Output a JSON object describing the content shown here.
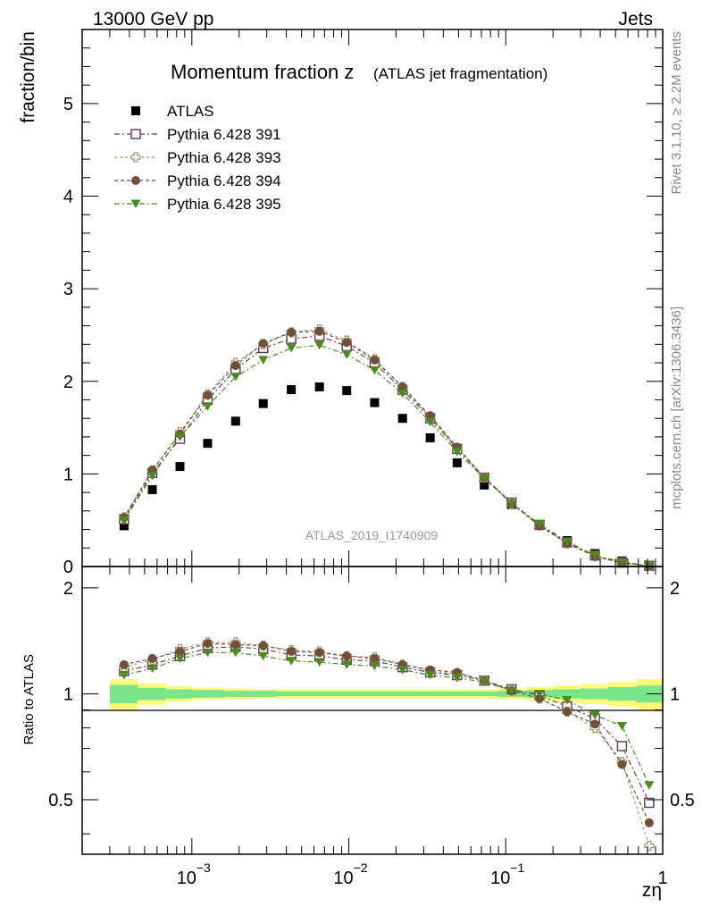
{
  "header": {
    "left": "13000 GeV pp",
    "right": "Jets"
  },
  "side_labels": {
    "rivet": "Rivet 3.1.10, ≥ 2.2M events",
    "mcplots": "mcplots.cern.ch [arXiv:1306.3436]"
  },
  "chart_data": {
    "type": "scatter",
    "title_main": "Momentum fraction z",
    "title_sub": "(ATLAS jet fragmentation)",
    "watermark": "ATLAS_2019_I1740909",
    "xlabel": "zη",
    "ylabel": "fraction/bin",
    "ratio_ylabel": "Ratio to ATLAS",
    "x_scale": "log",
    "xlim": [
      0.0002,
      1
    ],
    "ylim": [
      0,
      5.8
    ],
    "ratio_ylim": [
      0.35,
      2.3
    ],
    "x_ticks": [
      {
        "value": 0.001,
        "label": "10",
        "exp": "−3"
      },
      {
        "value": 0.01,
        "label": "10",
        "exp": "−2"
      },
      {
        "value": 0.1,
        "label": "10",
        "exp": "−1"
      },
      {
        "value": 1,
        "label": "1",
        "exp": ""
      }
    ],
    "y_ticks": [
      0,
      1,
      2,
      3,
      4,
      5
    ],
    "y_tick_labels": [
      "0",
      "1",
      "2",
      "3",
      "4",
      "5"
    ],
    "ratio_ticks": [
      0.5,
      1,
      2
    ],
    "ratio_tick_labels": [
      "0.5",
      "1",
      "2"
    ],
    "x": [
      0.00037,
      0.00056,
      0.00084,
      0.00126,
      0.0019,
      0.00285,
      0.0043,
      0.0065,
      0.0097,
      0.0146,
      0.022,
      0.033,
      0.049,
      0.073,
      0.109,
      0.164,
      0.246,
      0.37,
      0.55,
      0.82
    ],
    "band_x": [
      0.0003,
      0.00045,
      0.00068,
      0.001,
      0.0016,
      0.0024,
      0.0035,
      0.0053,
      0.008,
      0.012,
      0.018,
      0.027,
      0.04,
      0.06,
      0.09,
      0.135,
      0.2,
      0.3,
      0.45,
      0.68,
      1.0
    ],
    "band_inner": [
      0.06,
      0.04,
      0.03,
      0.025,
      0.02,
      0.02,
      0.015,
      0.015,
      0.015,
      0.015,
      0.015,
      0.015,
      0.015,
      0.015,
      0.02,
      0.025,
      0.03,
      0.035,
      0.045,
      0.055
    ],
    "band_outer": [
      0.1,
      0.07,
      0.05,
      0.04,
      0.035,
      0.03,
      0.03,
      0.03,
      0.03,
      0.03,
      0.03,
      0.03,
      0.03,
      0.03,
      0.035,
      0.045,
      0.055,
      0.065,
      0.08,
      0.1
    ],
    "band_inner_color": "#7be58c",
    "band_outer_color": "#fffa7a",
    "series": [
      {
        "name": "ATLAS",
        "marker": "square-filled",
        "color": "#000000",
        "values": [
          0.44,
          0.83,
          1.08,
          1.33,
          1.57,
          1.76,
          1.91,
          1.94,
          1.9,
          1.77,
          1.6,
          1.39,
          1.12,
          0.88,
          0.67,
          0.45,
          0.28,
          0.14,
          0.06,
          0.015
        ]
      },
      {
        "name": "Pythia 6.428 391",
        "marker": "square-open",
        "color": "#6b3f5c",
        "dash": "6,3,2,3",
        "values": [
          0.51,
          1.01,
          1.38,
          1.8,
          2.13,
          2.36,
          2.46,
          2.49,
          2.38,
          2.2,
          1.91,
          1.6,
          1.27,
          0.96,
          0.69,
          0.45,
          0.26,
          0.12,
          0.043,
          0.0075
        ],
        "ratio": [
          1.16,
          1.21,
          1.28,
          1.35,
          1.36,
          1.34,
          1.29,
          1.28,
          1.25,
          1.24,
          1.19,
          1.15,
          1.13,
          1.09,
          1.03,
          0.99,
          0.92,
          0.85,
          0.71,
          0.49
        ]
      },
      {
        "name": "Pythia 6.428 393",
        "marker": "plus-open",
        "color": "#a8986a",
        "dash": "3,3",
        "values": [
          0.53,
          1.04,
          1.45,
          1.86,
          2.2,
          2.4,
          2.53,
          2.56,
          2.44,
          2.24,
          1.94,
          1.61,
          1.28,
          0.96,
          0.68,
          0.44,
          0.25,
          0.11,
          0.038,
          0.0055
        ],
        "ratio": [
          1.19,
          1.25,
          1.34,
          1.4,
          1.4,
          1.37,
          1.33,
          1.32,
          1.28,
          1.27,
          1.21,
          1.16,
          1.14,
          1.09,
          1.02,
          0.97,
          0.89,
          0.8,
          0.64,
          0.37
        ]
      },
      {
        "name": "Pythia 6.428 394",
        "marker": "circle-filled",
        "color": "#70503c",
        "dash": "4,3",
        "values": [
          0.53,
          1.04,
          1.43,
          1.85,
          2.17,
          2.41,
          2.53,
          2.54,
          2.42,
          2.23,
          1.94,
          1.63,
          1.29,
          0.96,
          0.68,
          0.44,
          0.25,
          0.11,
          0.038,
          0.0065
        ],
        "ratio": [
          1.21,
          1.26,
          1.32,
          1.39,
          1.38,
          1.37,
          1.32,
          1.31,
          1.28,
          1.26,
          1.21,
          1.17,
          1.15,
          1.09,
          1.02,
          0.97,
          0.89,
          0.82,
          0.63,
          0.43
        ]
      },
      {
        "name": "Pythia 6.428 395",
        "marker": "triangle-down-filled",
        "color": "#4a8a1e",
        "dash": "6,3,2,3",
        "values": [
          0.5,
          0.98,
          1.4,
          1.73,
          2.05,
          2.23,
          2.36,
          2.39,
          2.29,
          2.12,
          1.87,
          1.56,
          1.24,
          0.95,
          0.68,
          0.46,
          0.27,
          0.12,
          0.049,
          0.008
        ],
        "ratio": [
          1.13,
          1.18,
          1.26,
          1.31,
          1.31,
          1.28,
          1.24,
          1.23,
          1.21,
          1.2,
          1.17,
          1.13,
          1.11,
          1.08,
          1.02,
          1.0,
          0.96,
          0.87,
          0.81,
          0.55
        ]
      }
    ]
  }
}
